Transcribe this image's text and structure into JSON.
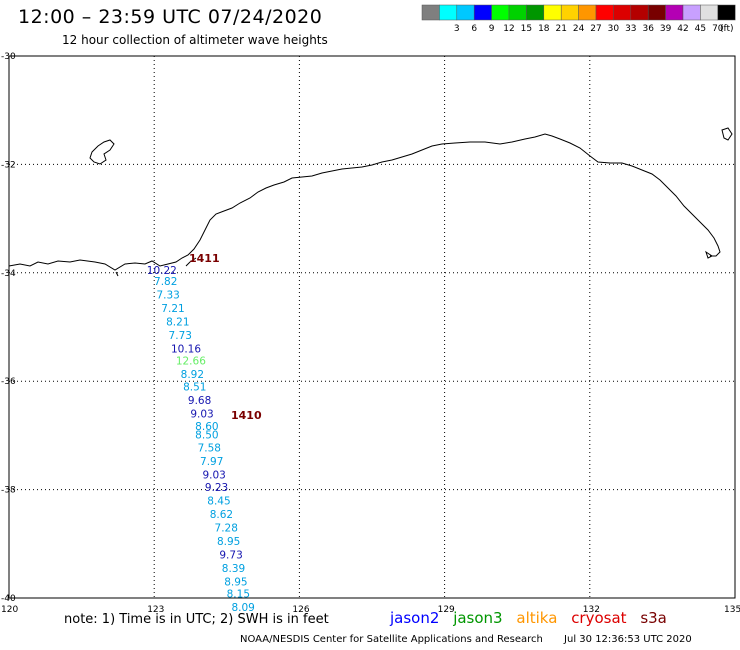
{
  "header": {
    "title": "12:00 – 23:59 UTC 07/24/2020",
    "subtitle": "12 hour collection of altimeter wave heights"
  },
  "legend": {
    "unit": "(ft)",
    "bins": [
      {
        "label": "",
        "color": "#7f7f7f"
      },
      {
        "label": "3",
        "color": "#00ffff"
      },
      {
        "label": "6",
        "color": "#00c8ff"
      },
      {
        "label": "9",
        "color": "#0000ff"
      },
      {
        "label": "12",
        "color": "#00ff00"
      },
      {
        "label": "15",
        "color": "#00d200"
      },
      {
        "label": "18",
        "color": "#009600"
      },
      {
        "label": "21",
        "color": "#ffff00"
      },
      {
        "label": "24",
        "color": "#ffd200"
      },
      {
        "label": "27",
        "color": "#ff9600"
      },
      {
        "label": "30",
        "color": "#ff0000"
      },
      {
        "label": "33",
        "color": "#dc0000"
      },
      {
        "label": "36",
        "color": "#b40000"
      },
      {
        "label": "39",
        "color": "#780000"
      },
      {
        "label": "42",
        "color": "#b400b4"
      },
      {
        "label": "45",
        "color": "#c8a0ff"
      },
      {
        "label": "70",
        "color": "#e0e0e0"
      },
      {
        "label": "",
        "color": "#000000"
      }
    ]
  },
  "axes": {
    "lat_labels": [
      "-30",
      "-32",
      "-34",
      "-36",
      "-38",
      "-40"
    ],
    "lon_labels": [
      "120",
      "123",
      "126",
      "129",
      "132",
      "135"
    ]
  },
  "passes": [
    {
      "label": "1411",
      "color": "#7a0000"
    },
    {
      "label": "1410",
      "color": "#7a0000"
    }
  ],
  "observations": [
    {
      "value": "10.22",
      "lat": -33.95,
      "lon": 122.95,
      "color": "#1515b0"
    },
    {
      "value": "7.82",
      "lat": -34.15,
      "lon": 123.1,
      "color": "#00a0e0"
    },
    {
      "value": "7.33",
      "lat": -34.4,
      "lon": 123.15,
      "color": "#00a0e0"
    },
    {
      "value": "7.21",
      "lat": -34.65,
      "lon": 123.25,
      "color": "#00a0e0"
    },
    {
      "value": "8.21",
      "lat": -34.9,
      "lon": 123.35,
      "color": "#00a0e0"
    },
    {
      "value": "7.73",
      "lat": -35.15,
      "lon": 123.4,
      "color": "#00a0e0"
    },
    {
      "value": "10.16",
      "lat": -35.4,
      "lon": 123.45,
      "color": "#1515b0"
    },
    {
      "value": "12.66",
      "lat": -35.62,
      "lon": 123.55,
      "color": "#66ee66"
    },
    {
      "value": "8.92",
      "lat": -35.87,
      "lon": 123.65,
      "color": "#00a0e0"
    },
    {
      "value": "8.51",
      "lat": -36.1,
      "lon": 123.7,
      "color": "#00a0e0"
    },
    {
      "value": "9.68",
      "lat": -36.35,
      "lon": 123.8,
      "color": "#1515b0"
    },
    {
      "value": "9.03",
      "lat": -36.6,
      "lon": 123.85,
      "color": "#1515b0"
    },
    {
      "value": "8.60",
      "lat": -36.83,
      "lon": 123.95,
      "color": "#00a0e0"
    },
    {
      "value": "8.50",
      "lat": -36.98,
      "lon": 123.95,
      "color": "#00a0e0"
    },
    {
      "value": "7.58",
      "lat": -37.22,
      "lon": 124.0,
      "color": "#00a0e0"
    },
    {
      "value": "7.97",
      "lat": -37.47,
      "lon": 124.05,
      "color": "#00a0e0"
    },
    {
      "value": "9.03",
      "lat": -37.72,
      "lon": 124.1,
      "color": "#1515b0"
    },
    {
      "value": "9.23",
      "lat": -37.95,
      "lon": 124.15,
      "color": "#1515b0"
    },
    {
      "value": "8.45",
      "lat": -38.2,
      "lon": 124.2,
      "color": "#00a0e0"
    },
    {
      "value": "8.62",
      "lat": -38.45,
      "lon": 124.25,
      "color": "#00a0e0"
    },
    {
      "value": "7.28",
      "lat": -38.7,
      "lon": 124.35,
      "color": "#00a0e0"
    },
    {
      "value": "8.95",
      "lat": -38.95,
      "lon": 124.4,
      "color": "#00a0e0"
    },
    {
      "value": "9.73",
      "lat": -39.2,
      "lon": 124.45,
      "color": "#1515b0"
    },
    {
      "value": "8.39",
      "lat": -39.45,
      "lon": 124.5,
      "color": "#00a0e0"
    },
    {
      "value": "8.95",
      "lat": -39.7,
      "lon": 124.55,
      "color": "#00a0e0"
    },
    {
      "value": "8.15",
      "lat": -39.92,
      "lon": 124.6,
      "color": "#00a0e0"
    },
    {
      "value": "8.09",
      "lat": -40.17,
      "lon": 124.7,
      "color": "#00a0e0"
    }
  ],
  "footer": {
    "note": "note: 1) Time is in UTC; 2) SWH is in feet",
    "satellites": [
      {
        "name": "jason2",
        "color": "#0000ff"
      },
      {
        "name": "jason3",
        "color": "#009600"
      },
      {
        "name": "altika",
        "color": "#ff9600"
      },
      {
        "name": "cryosat",
        "color": "#dc0000"
      },
      {
        "name": "s3a",
        "color": "#780000"
      }
    ],
    "credit": "NOAA/NESDIS Center for Satellite Applications and Research",
    "timestamp": "Jul 30 12:36:53 UTC 2020"
  }
}
